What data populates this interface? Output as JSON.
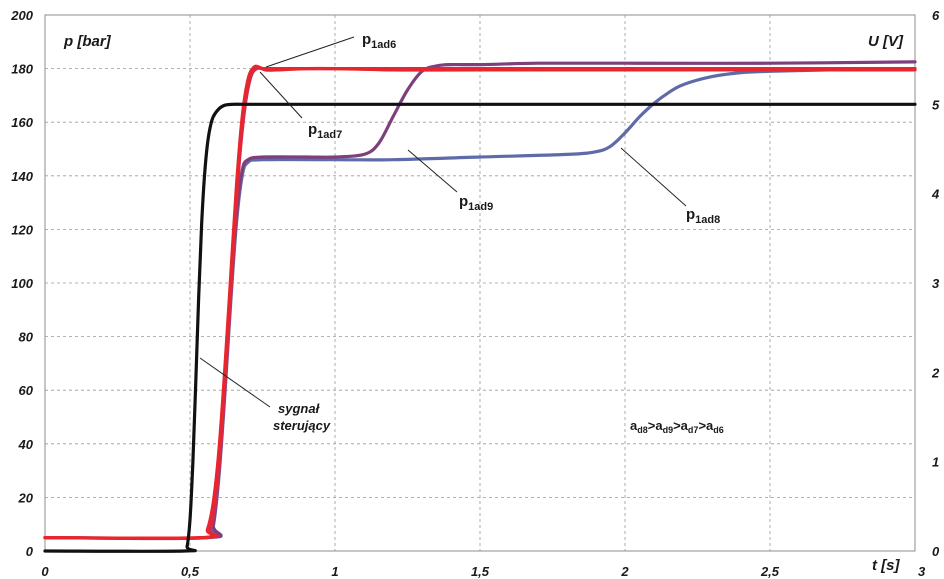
{
  "chart_data": {
    "type": "line",
    "ylabel_left": "p [bar]",
    "ylabel_right": "U [V]",
    "xlabel": "t [s]",
    "xlim": [
      0,
      3
    ],
    "ylim_left": [
      0,
      200
    ],
    "ylim_right": [
      0,
      6
    ],
    "grid": true,
    "x_ticks": [
      0,
      0.5,
      1,
      1.5,
      2,
      2.5,
      3
    ],
    "x_tick_labels": [
      "0",
      "0,5",
      "1",
      "1,5",
      "2",
      "2,5",
      "3"
    ],
    "y_left_ticks": [
      0,
      20,
      40,
      60,
      80,
      100,
      120,
      140,
      160,
      180,
      200
    ],
    "y_left_tick_labels": [
      "0",
      "20",
      "40",
      "60",
      "80",
      "100",
      "120",
      "140",
      "160",
      "180",
      "200"
    ],
    "y_right_ticks": [
      0,
      1,
      2,
      3,
      4,
      5,
      6
    ],
    "y_right_tick_labels": [
      "0",
      "1",
      "2",
      "3",
      "4",
      "5",
      "6"
    ],
    "series": [
      {
        "name": "sygnał sterujący",
        "axis": "right",
        "color": "#111111",
        "x": [
          0,
          0.48,
          0.49,
          0.5,
          0.51,
          0.52,
          0.53,
          0.54,
          0.55,
          0.56,
          0.57,
          0.58,
          0.6,
          0.62,
          0.65,
          0.7,
          1.0,
          2.0,
          3.0
        ],
        "y": [
          0,
          0,
          0.05,
          0.35,
          1.0,
          1.9,
          2.85,
          3.65,
          4.2,
          4.55,
          4.75,
          4.86,
          4.95,
          4.99,
          5.0,
          5.0,
          5.0,
          5.0,
          5.0
        ]
      },
      {
        "name": "p1ad6",
        "axis": "left",
        "color": "#e8262b",
        "x": [
          0,
          0.54,
          0.56,
          0.58,
          0.6,
          0.62,
          0.64,
          0.66,
          0.68,
          0.7,
          0.72,
          0.74,
          0.76,
          0.8,
          0.9,
          1.0,
          1.2,
          1.5,
          2.0,
          2.5,
          3.0
        ],
        "y": [
          5,
          5,
          8,
          18,
          38,
          68,
          102,
          136,
          162,
          176,
          180.5,
          180.5,
          179.5,
          179.5,
          180,
          180,
          179.5,
          179.5,
          179.5,
          179.5,
          179.5
        ]
      },
      {
        "name": "p1ad7",
        "axis": "left",
        "color": "#d42a4e",
        "x": [
          0,
          0.55,
          0.57,
          0.59,
          0.61,
          0.63,
          0.65,
          0.67,
          0.69,
          0.71,
          0.73,
          0.75,
          0.8,
          1.0,
          1.5,
          2.0,
          2.5,
          3.0
        ],
        "y": [
          5,
          5,
          8,
          20,
          45,
          78,
          112,
          145,
          166,
          177,
          180,
          180,
          180,
          180,
          180,
          180,
          180,
          180
        ]
      },
      {
        "name": "p1ad9",
        "axis": "left",
        "color": "#7e3f7c",
        "x": [
          0,
          0.56,
          0.58,
          0.6,
          0.62,
          0.64,
          0.66,
          0.68,
          0.7,
          0.75,
          0.9,
          1.0,
          1.1,
          1.15,
          1.2,
          1.25,
          1.3,
          1.35,
          1.4,
          1.5,
          1.7,
          2.0,
          2.5,
          3.0
        ],
        "y": [
          5,
          5,
          10,
          30,
          60,
          95,
          125,
          142,
          146,
          147,
          147,
          147,
          148,
          152,
          162,
          172,
          179,
          181,
          181.5,
          181.5,
          182,
          182,
          182,
          182.5
        ]
      },
      {
        "name": "p1ad8",
        "axis": "left",
        "color": "#5f6aa8",
        "x": [
          0,
          0.56,
          0.58,
          0.6,
          0.62,
          0.64,
          0.66,
          0.68,
          0.7,
          0.75,
          1.0,
          1.2,
          1.5,
          1.8,
          1.9,
          1.95,
          2.0,
          2.05,
          2.1,
          2.15,
          2.2,
          2.3,
          2.4,
          2.5,
          2.7,
          3.0
        ],
        "y": [
          5,
          5,
          9,
          28,
          58,
          92,
          122,
          140,
          145,
          146,
          146,
          146,
          147,
          148,
          149,
          151,
          156,
          162,
          167,
          171,
          174,
          177,
          178.5,
          179,
          179.5,
          180
        ]
      }
    ],
    "annotations": {
      "p1ad6": {
        "main": "p",
        "sub": "1ad6"
      },
      "p1ad7": {
        "main": "p",
        "sub": "1ad7"
      },
      "p1ad9": {
        "main": "p",
        "sub": "1ad9"
      },
      "p1ad8": {
        "main": "p",
        "sub": "1ad8"
      },
      "control_line1": "sygnał",
      "control_line2": "sterujący",
      "inequality": [
        {
          "main": "a",
          "sub": "d8"
        },
        {
          "main": ">a",
          "sub": "d9"
        },
        {
          "main": ">a",
          "sub": "d7"
        },
        {
          "main": ">a",
          "sub": "d6"
        }
      ]
    }
  }
}
